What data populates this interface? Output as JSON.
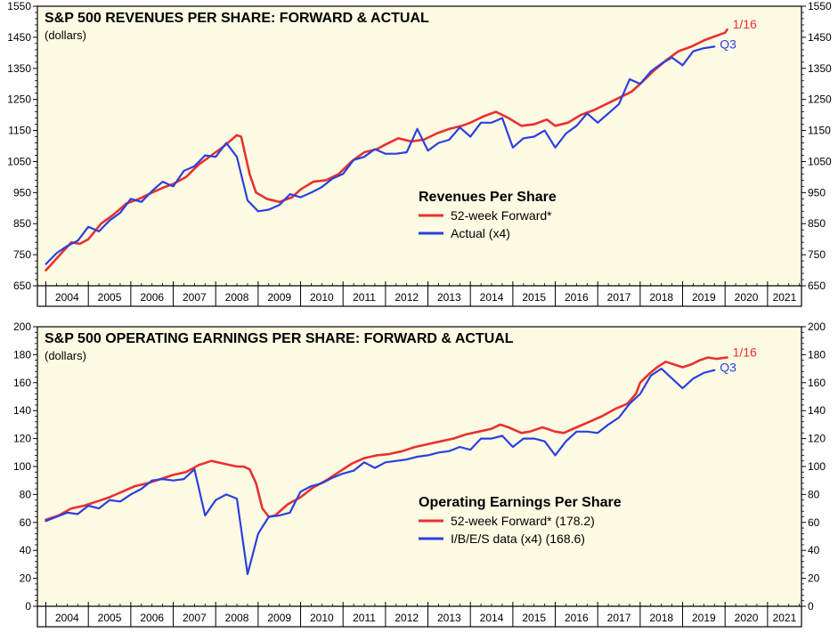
{
  "colors": {
    "forward": "#e8312f",
    "actual": "#2b3fe0",
    "plot_bg": "#fdfbe3",
    "frame": "#000000"
  },
  "chart_data": [
    {
      "type": "line",
      "title": "S&P 500 REVENUES PER SHARE: FORWARD & ACTUAL",
      "subtitle": "(dollars)",
      "legend_title": "Revenues Per Share",
      "legend_position": "center-right",
      "ylim": [
        650,
        1550
      ],
      "yticks": [
        650,
        750,
        850,
        950,
        1050,
        1150,
        1250,
        1350,
        1450,
        1550
      ],
      "xlim": [
        2003.8,
        2021.8
      ],
      "years": [
        "2004",
        "2005",
        "2006",
        "2007",
        "2008",
        "2009",
        "2010",
        "2011",
        "2012",
        "2013",
        "2014",
        "2015",
        "2016",
        "2017",
        "2018",
        "2019",
        "2020",
        "2021"
      ],
      "end_labels": {
        "forward": "1/16",
        "actual": "Q3"
      },
      "series": [
        {
          "name": "52-week Forward*",
          "key": "forward",
          "x": [
            2004.0,
            2004.3,
            2004.6,
            2004.8,
            2005.0,
            2005.3,
            2005.6,
            2005.9,
            2006.2,
            2006.5,
            2006.8,
            2007.0,
            2007.3,
            2007.6,
            2007.9,
            2008.2,
            2008.5,
            2008.6,
            2008.8,
            2008.95,
            2009.2,
            2009.5,
            2009.8,
            2010.0,
            2010.3,
            2010.6,
            2010.9,
            2011.2,
            2011.5,
            2011.8,
            2012.0,
            2012.3,
            2012.6,
            2012.9,
            2013.2,
            2013.5,
            2013.8,
            2014.0,
            2014.3,
            2014.6,
            2014.9,
            2015.2,
            2015.5,
            2015.8,
            2016.0,
            2016.3,
            2016.6,
            2016.9,
            2017.2,
            2017.5,
            2017.8,
            2018.0,
            2018.3,
            2018.6,
            2018.9,
            2019.2,
            2019.5,
            2019.8,
            2020.0,
            2020.05
          ],
          "values": [
            700,
            745,
            790,
            785,
            800,
            850,
            880,
            915,
            930,
            950,
            968,
            978,
            1000,
            1040,
            1070,
            1100,
            1135,
            1130,
            1010,
            950,
            930,
            920,
            935,
            960,
            985,
            990,
            1010,
            1050,
            1080,
            1090,
            1105,
            1125,
            1115,
            1120,
            1140,
            1155,
            1165,
            1175,
            1195,
            1210,
            1190,
            1165,
            1170,
            1185,
            1165,
            1175,
            1200,
            1215,
            1235,
            1255,
            1275,
            1300,
            1340,
            1375,
            1405,
            1420,
            1440,
            1455,
            1465,
            1475
          ]
        },
        {
          "name": "Actual (x4)",
          "key": "actual",
          "x": [
            2004.0,
            2004.25,
            2004.5,
            2004.75,
            2005.0,
            2005.25,
            2005.5,
            2005.75,
            2006.0,
            2006.25,
            2006.5,
            2006.75,
            2007.0,
            2007.25,
            2007.5,
            2007.75,
            2008.0,
            2008.25,
            2008.5,
            2008.75,
            2009.0,
            2009.25,
            2009.5,
            2009.75,
            2010.0,
            2010.25,
            2010.5,
            2010.75,
            2011.0,
            2011.25,
            2011.5,
            2011.75,
            2012.0,
            2012.25,
            2012.5,
            2012.75,
            2013.0,
            2013.25,
            2013.5,
            2013.75,
            2014.0,
            2014.25,
            2014.5,
            2014.75,
            2015.0,
            2015.25,
            2015.5,
            2015.75,
            2016.0,
            2016.25,
            2016.5,
            2016.75,
            2017.0,
            2017.25,
            2017.5,
            2017.75,
            2018.0,
            2018.25,
            2018.5,
            2018.75,
            2019.0,
            2019.25,
            2019.5,
            2019.75
          ],
          "values": [
            720,
            755,
            778,
            795,
            840,
            825,
            860,
            885,
            930,
            920,
            955,
            985,
            970,
            1020,
            1035,
            1070,
            1065,
            1110,
            1065,
            925,
            890,
            895,
            910,
            945,
            935,
            950,
            968,
            995,
            1010,
            1055,
            1065,
            1090,
            1075,
            1075,
            1080,
            1155,
            1085,
            1110,
            1120,
            1160,
            1130,
            1175,
            1175,
            1190,
            1095,
            1125,
            1130,
            1150,
            1095,
            1140,
            1165,
            1205,
            1175,
            1205,
            1235,
            1315,
            1300,
            1340,
            1365,
            1385,
            1360,
            1405,
            1415,
            1420
          ]
        }
      ]
    },
    {
      "type": "line",
      "title": "S&P 500 OPERATING EARNINGS PER SHARE: FORWARD & ACTUAL",
      "subtitle": "(dollars)",
      "legend_title": "Operating Earnings Per Share",
      "legend_position": "center-right",
      "ylim": [
        0,
        200
      ],
      "yticks": [
        0,
        20,
        40,
        60,
        80,
        100,
        120,
        140,
        160,
        180,
        200
      ],
      "xlim": [
        2003.8,
        2021.8
      ],
      "years": [
        "2004",
        "2005",
        "2006",
        "2007",
        "2008",
        "2009",
        "2010",
        "2011",
        "2012",
        "2013",
        "2014",
        "2015",
        "2016",
        "2017",
        "2018",
        "2019",
        "2020",
        "2021"
      ],
      "end_labels": {
        "forward": "1/16",
        "actual": "Q3"
      },
      "series": [
        {
          "name": "52-week Forward* (178.2)",
          "key": "forward",
          "x": [
            2004.0,
            2004.3,
            2004.6,
            2004.9,
            2005.2,
            2005.5,
            2005.8,
            2006.1,
            2006.4,
            2006.7,
            2007.0,
            2007.3,
            2007.6,
            2007.9,
            2008.2,
            2008.5,
            2008.65,
            2008.8,
            2008.95,
            2009.1,
            2009.25,
            2009.4,
            2009.7,
            2010.0,
            2010.3,
            2010.6,
            2010.9,
            2011.2,
            2011.5,
            2011.8,
            2012.1,
            2012.4,
            2012.7,
            2013.0,
            2013.3,
            2013.6,
            2013.9,
            2014.2,
            2014.5,
            2014.7,
            2014.9,
            2015.2,
            2015.4,
            2015.7,
            2016.0,
            2016.2,
            2016.5,
            2016.8,
            2017.1,
            2017.4,
            2017.7,
            2017.9,
            2018.0,
            2018.2,
            2018.4,
            2018.6,
            2018.8,
            2019.0,
            2019.2,
            2019.4,
            2019.6,
            2019.8,
            2020.05
          ],
          "values": [
            62,
            65,
            70,
            72,
            75,
            78,
            82,
            86,
            88,
            91,
            94,
            96,
            101,
            104,
            102,
            100,
            100,
            98,
            88,
            70,
            64,
            65,
            73,
            78,
            85,
            90,
            96,
            102,
            106,
            108,
            109,
            111,
            114,
            116,
            118,
            120,
            123,
            125,
            127,
            130,
            128,
            124,
            125,
            128,
            125,
            124,
            128,
            132,
            136,
            141,
            145,
            152,
            160,
            166,
            171,
            175,
            173,
            171,
            173,
            176,
            178,
            177,
            178
          ]
        },
        {
          "name": "I/B/E/S data (x4) (168.6)",
          "key": "actual",
          "x": [
            2004.0,
            2004.25,
            2004.5,
            2004.75,
            2005.0,
            2005.25,
            2005.5,
            2005.75,
            2006.0,
            2006.25,
            2006.5,
            2006.75,
            2007.0,
            2007.25,
            2007.5,
            2007.75,
            2008.0,
            2008.25,
            2008.5,
            2008.75,
            2009.0,
            2009.25,
            2009.5,
            2009.75,
            2010.0,
            2010.25,
            2010.5,
            2010.75,
            2011.0,
            2011.25,
            2011.5,
            2011.75,
            2012.0,
            2012.25,
            2012.5,
            2012.75,
            2013.0,
            2013.25,
            2013.5,
            2013.75,
            2014.0,
            2014.25,
            2014.5,
            2014.75,
            2015.0,
            2015.25,
            2015.5,
            2015.75,
            2016.0,
            2016.25,
            2016.5,
            2016.75,
            2017.0,
            2017.25,
            2017.5,
            2017.75,
            2018.0,
            2018.25,
            2018.5,
            2018.75,
            2019.0,
            2019.25,
            2019.5,
            2019.75
          ],
          "values": [
            61,
            64,
            67,
            66,
            72,
            70,
            76,
            75,
            80,
            84,
            90,
            91,
            90,
            91,
            98,
            65,
            76,
            80,
            77,
            23,
            52,
            64,
            65,
            67,
            82,
            86,
            88,
            92,
            95,
            97,
            103,
            99,
            103,
            104,
            105,
            107,
            108,
            110,
            111,
            114,
            112,
            120,
            120,
            122,
            114,
            120,
            120,
            118,
            108,
            118,
            125,
            125,
            124,
            130,
            135,
            145,
            152,
            165,
            170,
            163,
            156,
            163,
            167,
            169
          ]
        }
      ]
    }
  ]
}
